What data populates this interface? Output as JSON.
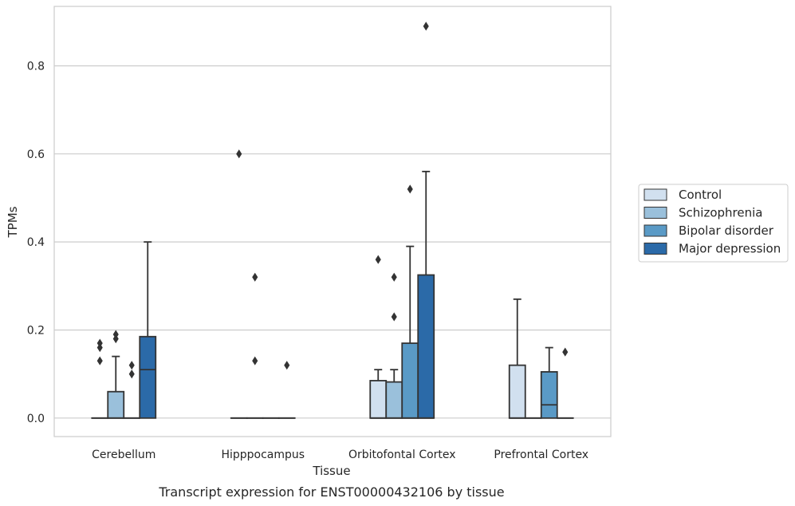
{
  "caption": "Transcript expression for ENST00000432106 by tissue",
  "chart_data": {
    "type": "box",
    "xlabel": "Tissue",
    "ylabel": "TPMs",
    "ylim": [
      -0.042,
      0.935
    ],
    "yticks": [
      0.0,
      0.2,
      0.4,
      0.6,
      0.8
    ],
    "ytick_labels": [
      "0.0",
      "0.2",
      "0.4",
      "0.6",
      "0.8"
    ],
    "grid": "horizontal",
    "legend_position": "right",
    "categories": [
      "Cerebellum",
      "Hipppocampus",
      "Orbitofontal Cortex",
      "Prefrontal Cortex"
    ],
    "series": [
      {
        "name": "Control",
        "color": "#d1e0ef",
        "boxes": [
          {
            "q1": 0,
            "median": 0,
            "q3": 0,
            "whisker_low": 0,
            "whisker_high": 0,
            "fliers": [
              0.13,
              0.16,
              0.17
            ]
          },
          {
            "q1": 0,
            "median": 0,
            "q3": 0,
            "whisker_low": 0,
            "whisker_high": 0,
            "fliers": [
              0.6
            ]
          },
          {
            "q1": 0,
            "median": 0,
            "q3": 0.085,
            "whisker_low": 0,
            "whisker_high": 0.11,
            "fliers": [
              0.36
            ]
          },
          {
            "q1": 0,
            "median": 0,
            "q3": 0.12,
            "whisker_low": 0,
            "whisker_high": 0.27,
            "fliers": []
          }
        ]
      },
      {
        "name": "Schizophrenia",
        "color": "#9ac0db",
        "boxes": [
          {
            "q1": 0,
            "median": 0,
            "q3": 0.06,
            "whisker_low": 0,
            "whisker_high": 0.14,
            "fliers": [
              0.18,
              0.19
            ]
          },
          {
            "q1": 0,
            "median": 0,
            "q3": 0,
            "whisker_low": 0,
            "whisker_high": 0,
            "fliers": [
              0.13,
              0.32
            ]
          },
          {
            "q1": 0,
            "median": 0,
            "q3": 0.082,
            "whisker_low": 0,
            "whisker_high": 0.11,
            "fliers": [
              0.23,
              0.32
            ]
          },
          {
            "q1": 0,
            "median": 0,
            "q3": 0,
            "whisker_low": 0,
            "whisker_high": 0,
            "fliers": []
          }
        ]
      },
      {
        "name": "Bipolar disorder",
        "color": "#5a9ac6",
        "boxes": [
          {
            "q1": 0,
            "median": 0,
            "q3": 0,
            "whisker_low": 0,
            "whisker_high": 0,
            "fliers": [
              0.1,
              0.12
            ]
          },
          {
            "q1": 0,
            "median": 0,
            "q3": 0,
            "whisker_low": 0,
            "whisker_high": 0,
            "fliers": []
          },
          {
            "q1": 0,
            "median": 0,
            "q3": 0.17,
            "whisker_low": 0,
            "whisker_high": 0.39,
            "fliers": [
              0.52
            ]
          },
          {
            "q1": 0,
            "median": 0.03,
            "q3": 0.105,
            "whisker_low": 0,
            "whisker_high": 0.16,
            "fliers": []
          }
        ]
      },
      {
        "name": "Major depression",
        "color": "#2b6aa8",
        "boxes": [
          {
            "q1": 0,
            "median": 0.11,
            "q3": 0.185,
            "whisker_low": 0,
            "whisker_high": 0.4,
            "fliers": []
          },
          {
            "q1": 0,
            "median": 0,
            "q3": 0,
            "whisker_low": 0,
            "whisker_high": 0,
            "fliers": [
              0.12
            ]
          },
          {
            "q1": 0,
            "median": 0,
            "q3": 0.325,
            "whisker_low": 0,
            "whisker_high": 0.56,
            "fliers": [
              0.89
            ]
          },
          {
            "q1": 0,
            "median": 0,
            "q3": 0,
            "whisker_low": 0,
            "whisker_high": 0,
            "fliers": [
              0.15
            ]
          }
        ]
      }
    ]
  }
}
